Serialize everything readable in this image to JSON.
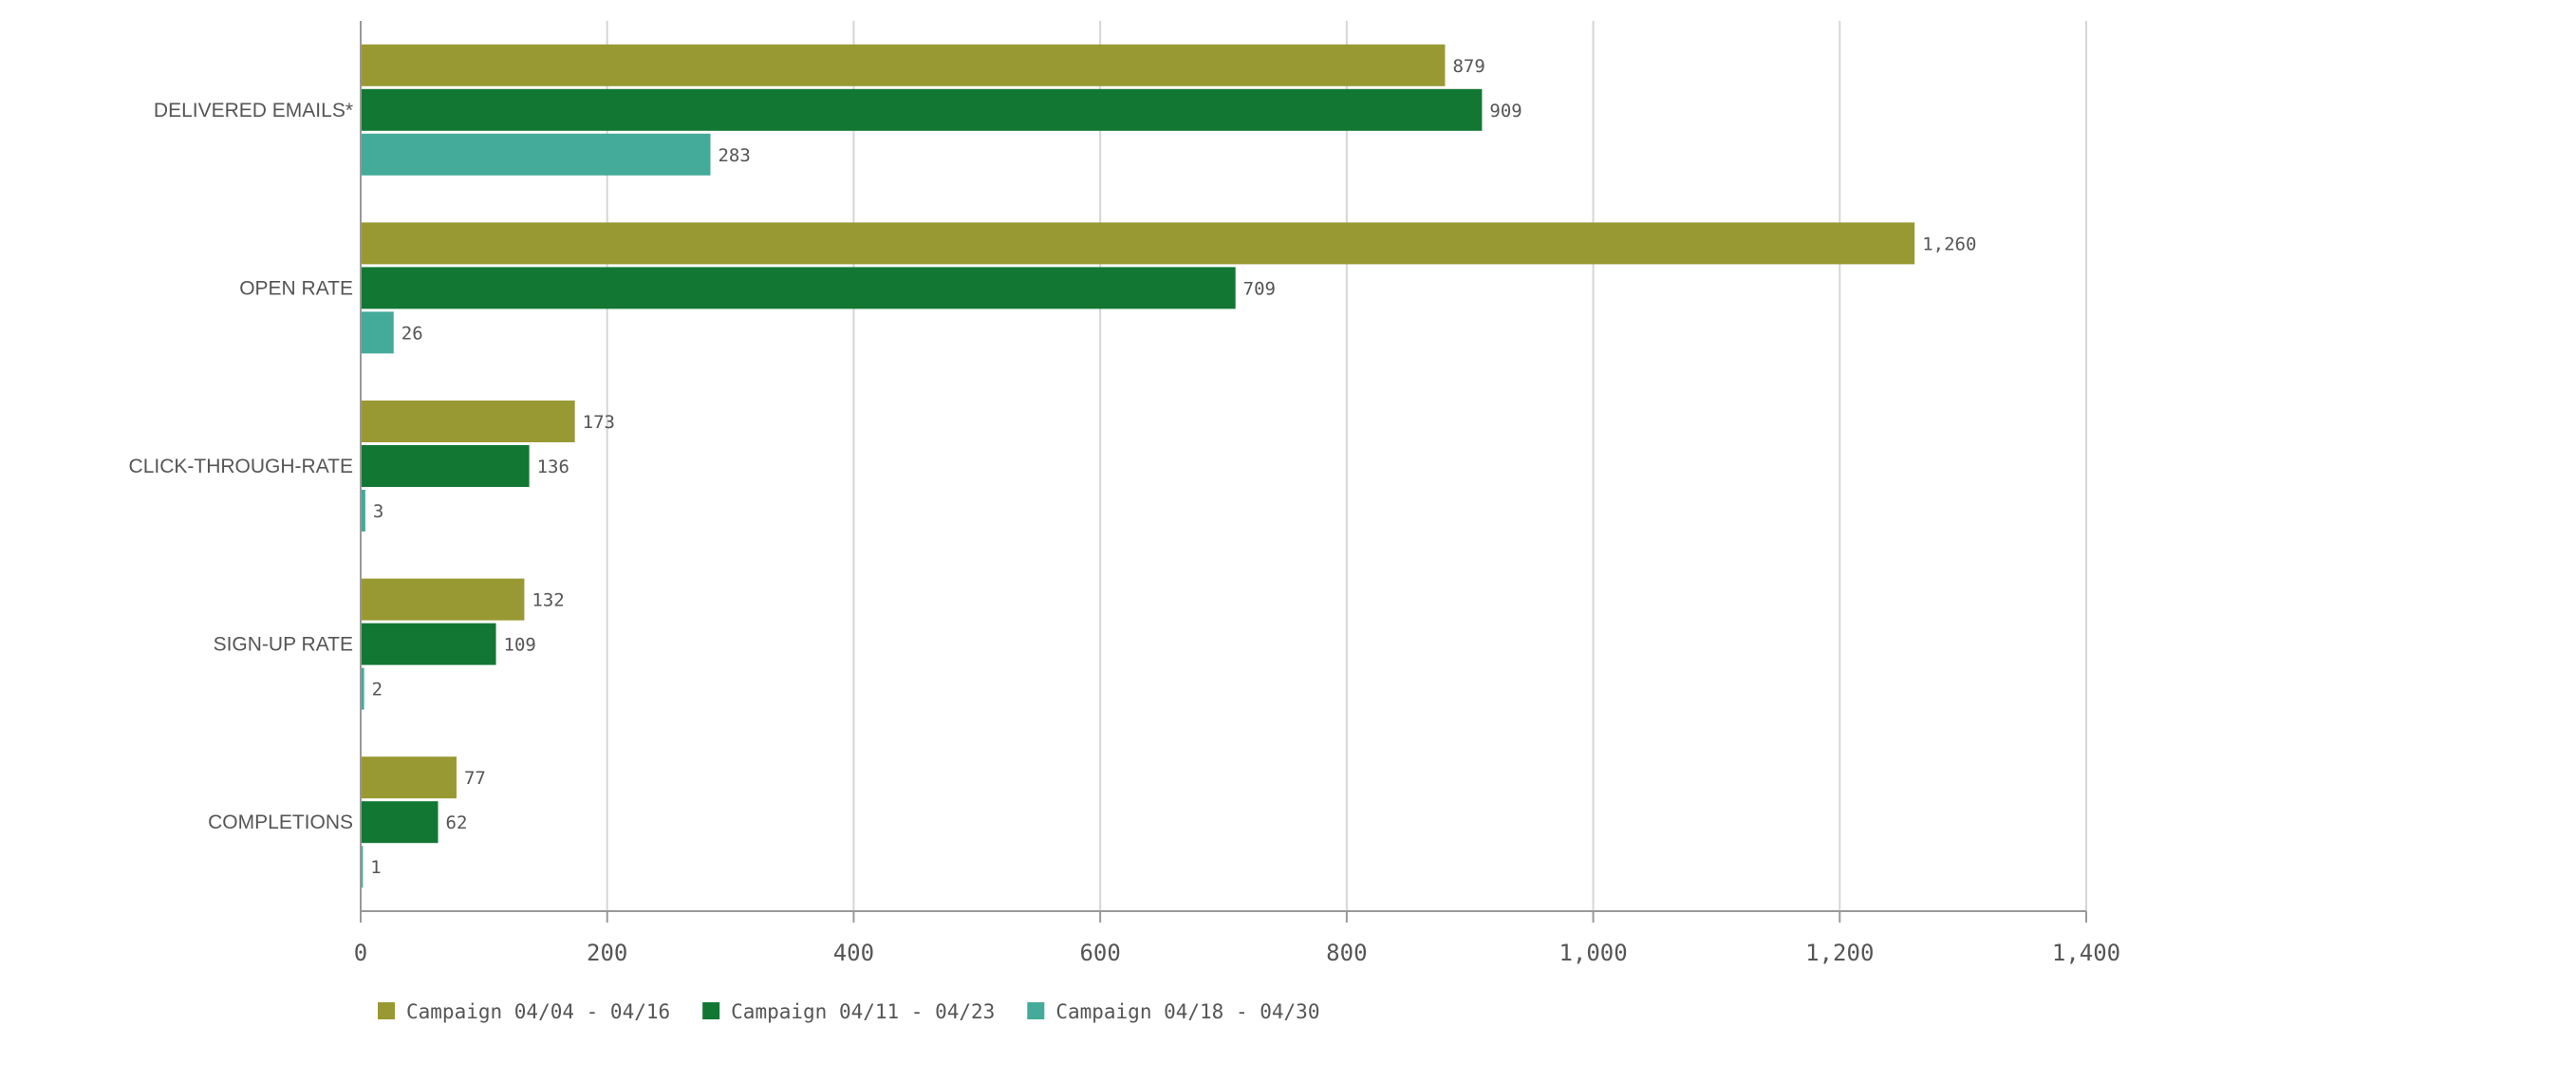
{
  "chart_data": {
    "type": "bar",
    "orientation": "horizontal",
    "categories": [
      "DELIVERED EMAILS*",
      "OPEN RATE",
      "CLICK-THROUGH-RATE",
      "SIGN-UP RATE",
      "COMPLETIONS"
    ],
    "series": [
      {
        "name": "Campaign 04/04 - 04/16",
        "color": "#999933",
        "values": [
          879,
          1260,
          173,
          132,
          77
        ],
        "labels": [
          "879",
          "1,260",
          "173",
          "132",
          "77"
        ]
      },
      {
        "name": "Campaign 04/11 - 04/23",
        "color": "#117733",
        "values": [
          909,
          709,
          136,
          109,
          62
        ],
        "labels": [
          "909",
          "709",
          "136",
          "109",
          "62"
        ]
      },
      {
        "name": "Campaign 04/18 - 04/30",
        "color": "#44aa99",
        "values": [
          283,
          26,
          3,
          2,
          1
        ],
        "labels": [
          "283",
          "26",
          "3",
          "2",
          "1"
        ]
      }
    ],
    "xlim": [
      0,
      1400
    ],
    "x_ticks": [
      0,
      200,
      400,
      600,
      800,
      1000,
      1200,
      1400
    ],
    "x_tick_labels": [
      "0",
      "200",
      "400",
      "600",
      "800",
      "1,000",
      "1,200",
      "1,400"
    ],
    "grid": true,
    "legend_position": "bottom-left",
    "title": "",
    "xlabel": "",
    "ylabel": ""
  }
}
